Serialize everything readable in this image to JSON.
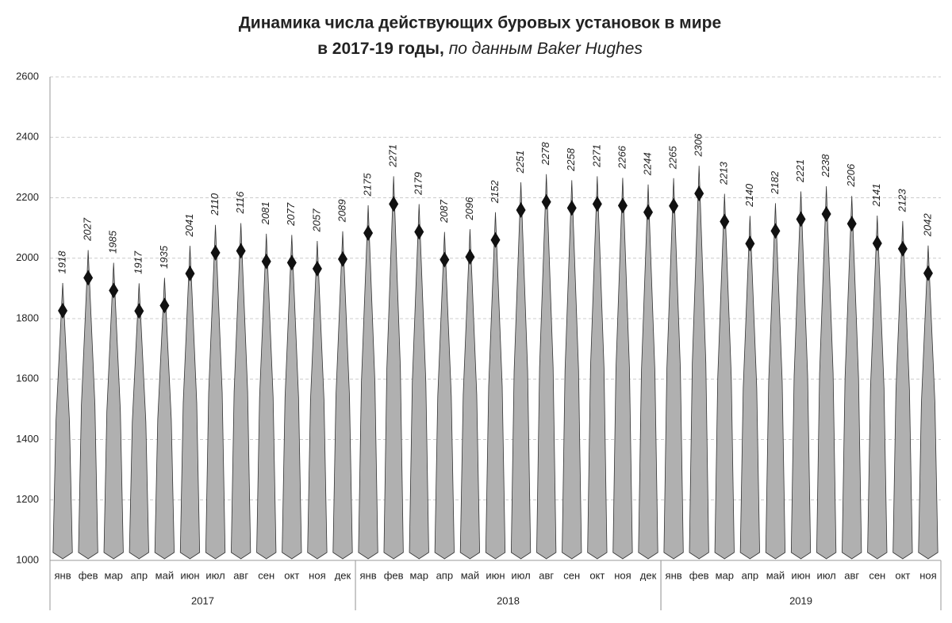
{
  "chart_data": {
    "type": "spindle",
    "title": [
      "Динамика числа действующих буровых установок в мире",
      "в 2017-19 годы,",
      "по данным Baker Hughes"
    ],
    "categories": [
      "янв",
      "фев",
      "мар",
      "апр",
      "май",
      "июн",
      "июл",
      "авг",
      "сен",
      "окт",
      "ноя",
      "дек",
      "янв",
      "фев",
      "мар",
      "апр",
      "май",
      "июн",
      "июл",
      "авг",
      "сен",
      "окт",
      "ноя",
      "дек",
      "янв",
      "фев",
      "мар",
      "апр",
      "май",
      "июн",
      "июл",
      "авг",
      "сен",
      "окт",
      "ноя"
    ],
    "groups": [
      "2017",
      "2018",
      "2019"
    ],
    "values": [
      1918,
      2027,
      1985,
      1917,
      1935,
      2041,
      2110,
      2116,
      2081,
      2077,
      2057,
      2089,
      2175,
      2271,
      2179,
      2087,
      2096,
      2152,
      2251,
      2278,
      2258,
      2271,
      2266,
      2244,
      2265,
      2306,
      2213,
      2140,
      2182,
      2221,
      2238,
      2206,
      2141,
      2123,
      2042
    ],
    "color": "#b0b0b0",
    "ylim": [
      1000,
      2600
    ],
    "yticks": [
      1000,
      1200,
      1400,
      1600,
      1800,
      2000,
      2200,
      2400,
      2600
    ],
    "grid": true
  }
}
